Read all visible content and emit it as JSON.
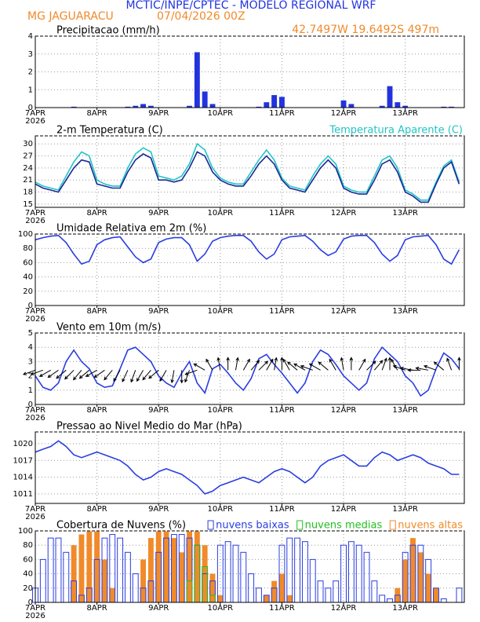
{
  "header": {
    "title": "MCTIC/INPE/CPTEC - MODELO REGIONAL WRF",
    "location": "MG JAGUARACU",
    "run": "07/04/2026 00Z",
    "coords": "42.7497W 19.6492S 497m"
  },
  "chart_data": [
    {
      "type": "bar",
      "title": "Precipitacao (mm/h)",
      "x_sublabel": "2026",
      "x": [
        0,
        3,
        6,
        9,
        12,
        15,
        18,
        21,
        24,
        27,
        30,
        33,
        36,
        39,
        42,
        45,
        48,
        51,
        54,
        57,
        60,
        63,
        66,
        69,
        72,
        75,
        78,
        81,
        84,
        87,
        90,
        93,
        96,
        99,
        102,
        105,
        108,
        111,
        114,
        117,
        120,
        123,
        126,
        129,
        132,
        135,
        138,
        141,
        144,
        147,
        150,
        153,
        156,
        159,
        162,
        165
      ],
      "xlim": [
        0,
        167
      ],
      "xticks": [
        {
          "value": 0,
          "label": "7APR"
        },
        {
          "value": 24,
          "label": "8APR"
        },
        {
          "value": 48,
          "label": "9APR"
        },
        {
          "value": 72,
          "label": "10APR"
        },
        {
          "value": 96,
          "label": "11APR"
        },
        {
          "value": 120,
          "label": "12APR"
        },
        {
          "value": 144,
          "label": "13APR"
        }
      ],
      "ylim": [
        0,
        4
      ],
      "yticks": [
        0,
        1,
        2,
        3,
        4
      ],
      "grid": true,
      "series": [
        {
          "color": "#2233dd",
          "values": [
            0,
            0,
            0,
            0,
            0,
            0.05,
            0,
            0,
            0,
            0,
            0,
            0,
            0.05,
            0.1,
            0.2,
            0.1,
            0,
            0,
            0,
            0,
            0.1,
            3.1,
            0.9,
            0.2,
            0,
            0,
            0,
            0,
            0,
            0.05,
            0.3,
            0.7,
            0.6,
            0,
            0,
            0,
            0,
            0,
            0,
            0,
            0.4,
            0.2,
            0,
            0,
            0,
            0.1,
            1.2,
            0.3,
            0.1,
            0,
            0,
            0,
            0,
            0.05,
            0.05,
            0
          ]
        }
      ]
    },
    {
      "type": "line",
      "title": "2-m Temperatura (C)",
      "x_sublabel": "2026",
      "x": [
        0,
        3,
        6,
        9,
        12,
        15,
        18,
        21,
        24,
        27,
        30,
        33,
        36,
        39,
        42,
        45,
        48,
        51,
        54,
        57,
        60,
        63,
        66,
        69,
        72,
        75,
        78,
        81,
        84,
        87,
        90,
        93,
        96,
        99,
        102,
        105,
        108,
        111,
        114,
        117,
        120,
        123,
        126,
        129,
        132,
        135,
        138,
        141,
        144,
        147,
        150,
        153,
        156,
        159,
        162,
        165
      ],
      "xlim": [
        0,
        167
      ],
      "xticks": [
        {
          "value": 0,
          "label": "7APR"
        },
        {
          "value": 24,
          "label": "8APR"
        },
        {
          "value": 48,
          "label": "9APR"
        },
        {
          "value": 72,
          "label": "10APR"
        },
        {
          "value": 96,
          "label": "11APR"
        },
        {
          "value": 120,
          "label": "12APR"
        },
        {
          "value": 144,
          "label": "13APR"
        }
      ],
      "ylim": [
        14.2,
        32
      ],
      "yticks": [
        15,
        18,
        21,
        24,
        27,
        30
      ],
      "grid": true,
      "series": [
        {
          "name": "Temperatura Aparente (C)",
          "color": "#22c4c4",
          "values": [
            20.5,
            19.5,
            19,
            18.5,
            22,
            25.5,
            28,
            27,
            21,
            20,
            19.5,
            19.5,
            24,
            27.5,
            29,
            28,
            22,
            21.5,
            21,
            22,
            25,
            30,
            28.5,
            24,
            21.5,
            20.5,
            20,
            20,
            23,
            26,
            28.5,
            26,
            21.5,
            19.5,
            19,
            18.5,
            22,
            25,
            27,
            25,
            19.5,
            18.5,
            18,
            18,
            22,
            26,
            27,
            24,
            18.5,
            17.5,
            16,
            16,
            20.5,
            24.5,
            26,
            20.5
          ]
        },
        {
          "color": "#1a2a96",
          "values": [
            20,
            19,
            18.5,
            18,
            21,
            24,
            26,
            25.5,
            20,
            19.5,
            19,
            19,
            23,
            26,
            27.5,
            26.5,
            21,
            21,
            20.5,
            21,
            24,
            28,
            27,
            23,
            21,
            20,
            19.5,
            19.5,
            22,
            25,
            27,
            25,
            21,
            19,
            18.5,
            18,
            21,
            24,
            26,
            24,
            19,
            18,
            17.5,
            17.5,
            21,
            25,
            26,
            23,
            18,
            17,
            15.5,
            15.5,
            20,
            24,
            25.5,
            20
          ]
        }
      ]
    },
    {
      "type": "line",
      "title": "Umidade Relativa em 2m (%)",
      "x_sublabel": "2026",
      "x": [
        0,
        3,
        6,
        9,
        12,
        15,
        18,
        21,
        24,
        27,
        30,
        33,
        36,
        39,
        42,
        45,
        48,
        51,
        54,
        57,
        60,
        63,
        66,
        69,
        72,
        75,
        78,
        81,
        84,
        87,
        90,
        93,
        96,
        99,
        102,
        105,
        108,
        111,
        114,
        117,
        120,
        123,
        126,
        129,
        132,
        135,
        138,
        141,
        144,
        147,
        150,
        153,
        156,
        159,
        162,
        165
      ],
      "xlim": [
        0,
        167
      ],
      "xticks": [
        {
          "value": 0,
          "label": "7APR"
        },
        {
          "value": 24,
          "label": "8APR"
        },
        {
          "value": 48,
          "label": "9APR"
        },
        {
          "value": 72,
          "label": "10APR"
        },
        {
          "value": 96,
          "label": "11APR"
        },
        {
          "value": 120,
          "label": "12APR"
        },
        {
          "value": 144,
          "label": "13APR"
        }
      ],
      "ylim": [
        0,
        100
      ],
      "yticks": [
        0,
        20,
        40,
        60,
        80,
        100
      ],
      "grid": true,
      "series": [
        {
          "color": "#2a3ee0",
          "values": [
            92,
            95,
            97,
            98,
            88,
            72,
            58,
            62,
            85,
            92,
            95,
            96,
            82,
            68,
            60,
            65,
            88,
            93,
            95,
            95,
            85,
            62,
            72,
            90,
            95,
            97,
            98,
            98,
            90,
            75,
            65,
            72,
            92,
            96,
            97,
            98,
            90,
            78,
            70,
            75,
            93,
            97,
            98,
            98,
            88,
            72,
            62,
            70,
            92,
            96,
            97,
            98,
            85,
            65,
            58,
            78
          ]
        }
      ]
    },
    {
      "type": "line",
      "title": "Vento em 10m (m/s)",
      "x_sublabel": "2026",
      "x": [
        0,
        3,
        6,
        9,
        12,
        15,
        18,
        21,
        24,
        27,
        30,
        33,
        36,
        39,
        42,
        45,
        48,
        51,
        54,
        57,
        60,
        63,
        66,
        69,
        72,
        75,
        78,
        81,
        84,
        87,
        90,
        93,
        96,
        99,
        102,
        105,
        108,
        111,
        114,
        117,
        120,
        123,
        126,
        129,
        132,
        135,
        138,
        141,
        144,
        147,
        150,
        153,
        156,
        159,
        162,
        165
      ],
      "xlim": [
        0,
        167
      ],
      "xticks": [
        {
          "value": 0,
          "label": "7APR"
        },
        {
          "value": 24,
          "label": "8APR"
        },
        {
          "value": 48,
          "label": "9APR"
        },
        {
          "value": 72,
          "label": "10APR"
        },
        {
          "value": 96,
          "label": "11APR"
        },
        {
          "value": 120,
          "label": "12APR"
        },
        {
          "value": 144,
          "label": "13APR"
        }
      ],
      "ylim": [
        0,
        5
      ],
      "yticks": [
        0,
        1,
        2,
        3,
        4,
        5
      ],
      "grid": true,
      "series": [
        {
          "color": "#2a3ee0",
          "values": [
            2,
            1.2,
            1,
            1.5,
            3,
            3.8,
            3,
            2.5,
            1.5,
            1.2,
            1.3,
            2.5,
            3.8,
            4,
            3.5,
            3,
            2,
            1.5,
            1.2,
            2.2,
            3,
            1.5,
            0.8,
            2.5,
            2.8,
            2.2,
            1.5,
            1,
            1.8,
            3.2,
            3.5,
            2.8,
            2.2,
            1.5,
            0.8,
            1.5,
            3,
            3.8,
            3.5,
            2.8,
            2,
            1.5,
            1,
            1.5,
            3.2,
            4,
            3.5,
            3,
            2,
            1.5,
            0.6,
            1,
            2.5,
            3.6,
            3.2,
            2.5
          ],
          "directions": [
            200,
            200,
            210,
            215,
            220,
            225,
            230,
            220,
            210,
            215,
            230,
            240,
            245,
            250,
            240,
            230,
            220,
            240,
            260,
            270,
            250,
            200,
            150,
            120,
            100,
            90,
            80,
            60,
            50,
            45,
            60,
            80,
            90,
            120,
            140,
            150,
            160,
            150,
            140,
            120,
            100,
            90,
            60,
            45,
            50,
            70,
            90,
            120,
            160,
            170,
            180,
            170,
            160,
            140,
            110,
            90
          ]
        }
      ]
    },
    {
      "type": "line",
      "title": "Pressao ao Nivel Medio do Mar (hPa)",
      "x_sublabel": "2026",
      "x": [
        0,
        3,
        6,
        9,
        12,
        15,
        18,
        21,
        24,
        27,
        30,
        33,
        36,
        39,
        42,
        45,
        48,
        51,
        54,
        57,
        60,
        63,
        66,
        69,
        72,
        75,
        78,
        81,
        84,
        87,
        90,
        93,
        96,
        99,
        102,
        105,
        108,
        111,
        114,
        117,
        120,
        123,
        126,
        129,
        132,
        135,
        138,
        141,
        144,
        147,
        150,
        153,
        156,
        159,
        162,
        165
      ],
      "xlim": [
        0,
        167
      ],
      "xticks": [
        {
          "value": 0,
          "label": "7APR"
        },
        {
          "value": 24,
          "label": "8APR"
        },
        {
          "value": 48,
          "label": "9APR"
        },
        {
          "value": 72,
          "label": "10APR"
        },
        {
          "value": 96,
          "label": "11APR"
        },
        {
          "value": 120,
          "label": "12APR"
        },
        {
          "value": 144,
          "label": "13APR"
        }
      ],
      "ylim": [
        1009.3,
        1022.1
      ],
      "yticks": [
        1011,
        1014,
        1017,
        1020
      ],
      "grid": true,
      "series": [
        {
          "color": "#2a3ee0",
          "values": [
            1018.5,
            1019,
            1019.5,
            1020.5,
            1019.5,
            1018,
            1017.5,
            1018,
            1018.5,
            1018,
            1017.5,
            1017,
            1016,
            1014.5,
            1013.5,
            1014,
            1015,
            1015.5,
            1015,
            1014.5,
            1013.5,
            1012.5,
            1011,
            1011.5,
            1012.5,
            1013,
            1013.5,
            1014,
            1013.5,
            1013,
            1014,
            1015,
            1015.5,
            1015,
            1014,
            1013,
            1014,
            1016,
            1017,
            1017.5,
            1018,
            1017,
            1016,
            1016,
            1017.5,
            1018.5,
            1018,
            1017,
            1017.5,
            1018,
            1017.5,
            1016.5,
            1016,
            1015.5,
            1014.5,
            1014.5
          ]
        }
      ]
    },
    {
      "type": "bar",
      "title": "Cobertura de Nuvens (%)",
      "x_sublabel": "2026",
      "x": [
        0,
        3,
        6,
        9,
        12,
        15,
        18,
        21,
        24,
        27,
        30,
        33,
        36,
        39,
        42,
        45,
        48,
        51,
        54,
        57,
        60,
        63,
        66,
        69,
        72,
        75,
        78,
        81,
        84,
        87,
        90,
        93,
        96,
        99,
        102,
        105,
        108,
        111,
        114,
        117,
        120,
        123,
        126,
        129,
        132,
        135,
        138,
        141,
        144,
        147,
        150,
        153,
        156,
        159,
        162,
        165
      ],
      "xlim": [
        0,
        167
      ],
      "xticks": [
        {
          "value": 0,
          "label": "7APR"
        },
        {
          "value": 24,
          "label": "8APR"
        },
        {
          "value": 48,
          "label": "9APR"
        },
        {
          "value": 72,
          "label": "10APR"
        },
        {
          "value": 96,
          "label": "11APR"
        },
        {
          "value": 120,
          "label": "12APR"
        },
        {
          "value": 144,
          "label": "13APR"
        }
      ],
      "ylim": [
        0,
        100
      ],
      "yticks": [
        0,
        20,
        40,
        60,
        80,
        100
      ],
      "grid": true,
      "series": [
        {
          "name": "nuvens baixas",
          "color": "#2a3ee0",
          "filled": false,
          "values": [
            20,
            60,
            90,
            90,
            70,
            30,
            10,
            20,
            60,
            90,
            95,
            90,
            70,
            40,
            20,
            30,
            70,
            90,
            95,
            95,
            90,
            80,
            40,
            30,
            80,
            85,
            80,
            70,
            40,
            20,
            10,
            20,
            80,
            90,
            90,
            85,
            60,
            30,
            20,
            30,
            80,
            85,
            80,
            70,
            30,
            10,
            5,
            10,
            70,
            80,
            80,
            60,
            20,
            5,
            0,
            20
          ]
        },
        {
          "name": "nuvens medias",
          "color": "#22c022",
          "filled": false,
          "values": [
            0,
            0,
            0,
            0,
            0,
            0,
            0,
            0,
            0,
            0,
            0,
            0,
            0,
            0,
            0,
            0,
            0,
            0,
            0,
            0,
            30,
            80,
            50,
            10,
            0,
            0,
            0,
            0,
            0,
            0,
            0,
            0,
            0,
            0,
            0,
            0,
            0,
            0,
            0,
            0,
            0,
            0,
            0,
            0,
            0,
            0,
            0,
            0,
            0,
            0,
            0,
            0,
            0,
            0,
            0,
            0
          ]
        },
        {
          "name": "nuvens altas",
          "color": "#f08a2a",
          "filled": true,
          "values": [
            0,
            0,
            0,
            0,
            0,
            80,
            95,
            100,
            100,
            60,
            20,
            0,
            0,
            0,
            60,
            90,
            100,
            100,
            90,
            70,
            100,
            100,
            80,
            40,
            10,
            0,
            0,
            0,
            0,
            0,
            10,
            30,
            40,
            10,
            0,
            0,
            0,
            0,
            0,
            0,
            0,
            0,
            0,
            0,
            0,
            0,
            0,
            20,
            60,
            90,
            70,
            40,
            20,
            0,
            0,
            0
          ]
        }
      ]
    }
  ]
}
